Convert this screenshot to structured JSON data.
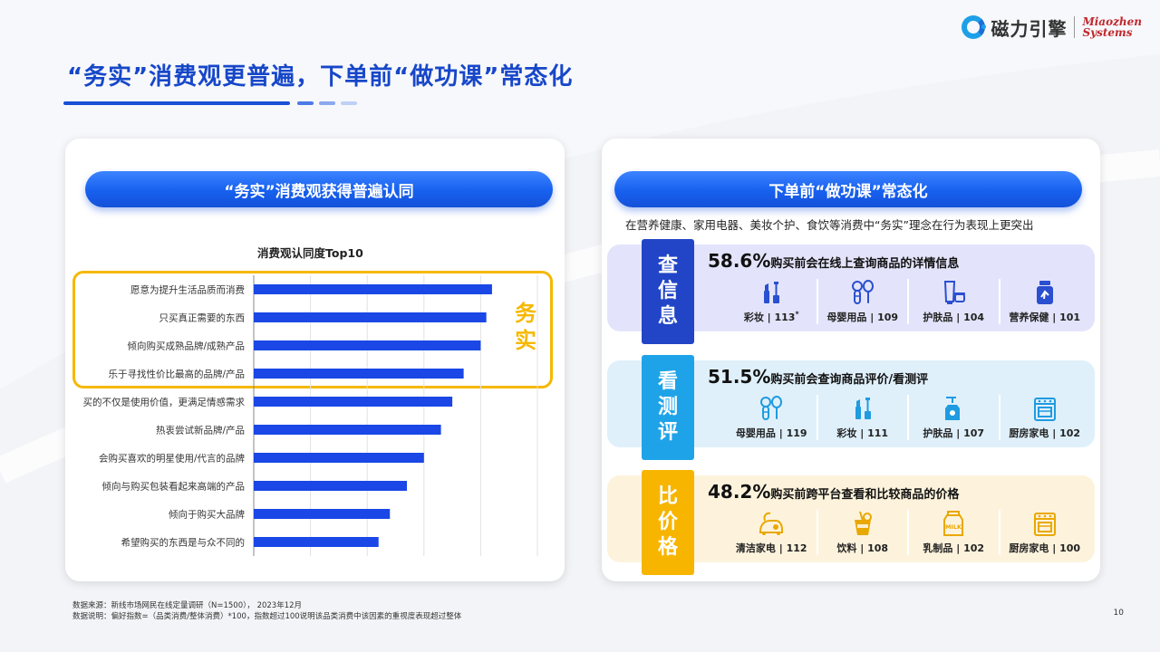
{
  "logo": {
    "cn": "磁力引擎",
    "en_line1": "Miaozhen",
    "en_line2": "Systems"
  },
  "title": "“务实”消费观更普遍，下单前“做功课”常态化",
  "left_panel": {
    "pill": "“务实”消费观获得普遍认同",
    "highlight_label": "务实",
    "chart_data": {
      "type": "bar",
      "orientation": "horizontal",
      "title": "消费观认同度Top10",
      "categories": [
        "愿意为提升生活品质而消费",
        "只买真正需要的东西",
        "倾向购买成熟品牌/成熟产品",
        "乐于寻找性价比最高的品牌/产品",
        "买的不仅是使用价值，更满足情感需求",
        "热衷尝试新品牌/产品",
        "会购买喜欢的明星使用/代言的品牌",
        "倾向与购买包装看起来高端的产品",
        "倾向于购买大品牌",
        "希望购买的东西是与众不同的"
      ],
      "values": [
        84,
        82,
        80,
        74,
        70,
        66,
        60,
        54,
        48,
        44
      ],
      "xlim": [
        0,
        100
      ],
      "grid": true,
      "color": "#1a47e6"
    }
  },
  "right_panel": {
    "pill": "下单前“做功课”常态化",
    "subtitle": "在营养健康、家用电器、美妆个护、食饮等消费中“务实”理念在行为表现上更突出",
    "sections": [
      {
        "tab": [
          "查",
          "信",
          "息"
        ],
        "pct": "58.6%",
        "desc": "购买前会在线上查询商品的详情信息",
        "bg": "#e3e4fb",
        "tab_color": "#2145c6",
        "icon_color": "#2a4fd0",
        "items": [
          {
            "icon": "lipstick-icon",
            "label": "彩妆 | 113",
            "sup": "*"
          },
          {
            "icon": "baby-bottle-icon",
            "label": "母婴用品 | 109"
          },
          {
            "icon": "skincare-tube-icon",
            "label": "护肤品 | 104"
          },
          {
            "icon": "supplement-bottle-icon",
            "label": "营养保健 | 101"
          }
        ]
      },
      {
        "tab": [
          "看",
          "测",
          "评"
        ],
        "pct": "51.5%",
        "desc": "购买前会查询商品评价/看测评",
        "bg": "#dff0fb",
        "tab_color": "#1fa3e8",
        "icon_color": "#1f9be0",
        "items": [
          {
            "icon": "baby-bottle-icon",
            "label": "母婴用品 | 119"
          },
          {
            "icon": "lipstick-icon",
            "label": "彩妆 | 111"
          },
          {
            "icon": "pump-bottle-icon",
            "label": "护肤品 | 107"
          },
          {
            "icon": "oven-icon",
            "label": "厨房家电 | 102"
          }
        ]
      },
      {
        "tab": [
          "比",
          "价",
          "格"
        ],
        "pct": "48.2%",
        "desc": "购买前跨平台查看和比较商品的价格",
        "bg": "#fdf3dc",
        "tab_color": "#f7b500",
        "icon_color": "#e9a800",
        "items": [
          {
            "icon": "vacuum-cleaner-icon",
            "label": "清洁家电 | 112"
          },
          {
            "icon": "drink-cup-icon",
            "label": "饮料 | 108"
          },
          {
            "icon": "milk-jar-icon",
            "label": "乳制品 | 102",
            "jar_text": "MILK"
          },
          {
            "icon": "oven-icon",
            "label": "厨房家电 | 100"
          }
        ]
      }
    ]
  },
  "footnotes": {
    "source": "数据来源：新线市场网民在线定量调研（N=1500），   2023年12月",
    "explain": "数据说明：偏好指数=（品类消费/整体消费）*100，指数超过100说明该品类消费中该因素的重视度表现超过整体"
  },
  "page_number": "10"
}
